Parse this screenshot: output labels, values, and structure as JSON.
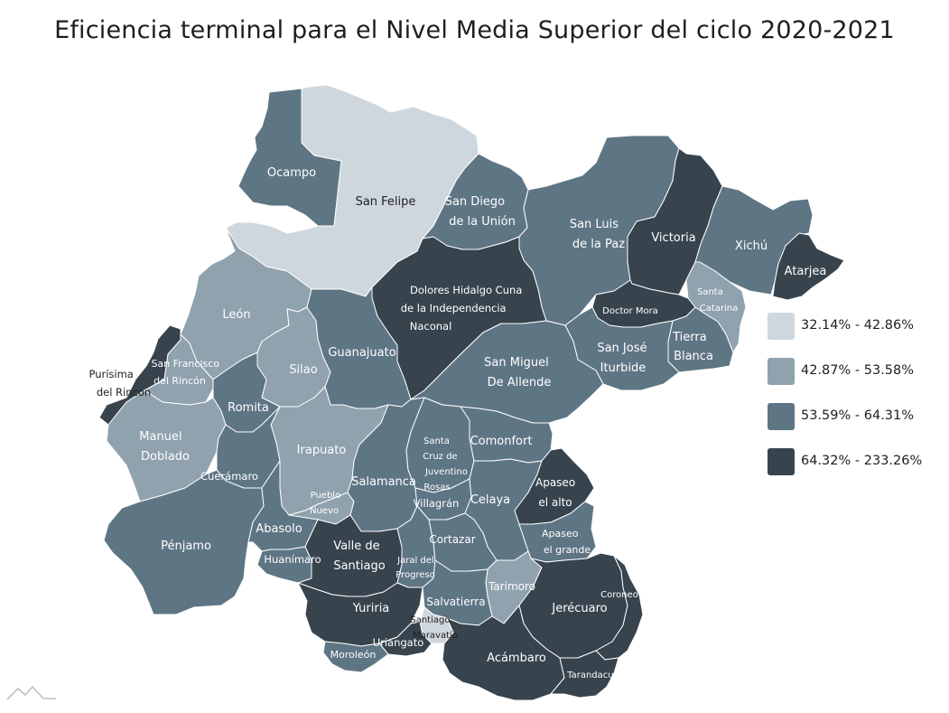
{
  "title": "Eficiencia terminal para el Nivel Media Superior del ciclo 2020-2021",
  "legend": [
    {
      "label": "32.14% - 42.86%",
      "color": "#cfd7de"
    },
    {
      "label": "42.87% - 53.58%",
      "color": "#8fa2ae"
    },
    {
      "label": "53.59% - 64.31%",
      "color": "#5e7584"
    },
    {
      "label": "64.32% - 233.26%",
      "color": "#37434d"
    }
  ],
  "icons": {
    "logo": "mountain-logo-icon"
  },
  "regions": [
    {
      "id": "ocampo",
      "name": "Ocampo",
      "class": 2
    },
    {
      "id": "san-felipe",
      "name": "San Felipe",
      "class": 0
    },
    {
      "id": "san-diego",
      "name": "San Diego de la Unión",
      "class": 2
    },
    {
      "id": "san-luis-paz",
      "name": "San Luis de la Paz",
      "class": 2
    },
    {
      "id": "victoria",
      "name": "Victoria",
      "class": 3
    },
    {
      "id": "xichu",
      "name": "Xichú",
      "class": 2
    },
    {
      "id": "atarjea",
      "name": "Atarjea",
      "class": 3
    },
    {
      "id": "santa-catarina",
      "name": "Santa Catarina",
      "class": 1
    },
    {
      "id": "doctor-mora",
      "name": "Doctor Mora",
      "class": 3
    },
    {
      "id": "tierra-blanca",
      "name": "Tierra Blanca",
      "class": 2
    },
    {
      "id": "san-jose-iturbide",
      "name": "San José Iturbide",
      "class": 2
    },
    {
      "id": "dolores",
      "name": "Dolores Hidalgo Cuna de la Independencia Naconal",
      "class": 3
    },
    {
      "id": "san-miguel",
      "name": "San Miguel De Allende",
      "class": 2
    },
    {
      "id": "leon",
      "name": "León",
      "class": 1
    },
    {
      "id": "purisima",
      "name": "Purísima del Rincon",
      "class": 3
    },
    {
      "id": "san-francisco",
      "name": "San Francisco del Rincón",
      "class": 1
    },
    {
      "id": "silao",
      "name": "Silao",
      "class": 1
    },
    {
      "id": "guanajuato",
      "name": "Guanajuato",
      "class": 2
    },
    {
      "id": "romita",
      "name": "Romita",
      "class": 2
    },
    {
      "id": "manuel-doblado",
      "name": "Manuel Doblado",
      "class": 1
    },
    {
      "id": "irapuato",
      "name": "Irapuato",
      "class": 1
    },
    {
      "id": "cueramaro",
      "name": "Cuerámaro",
      "class": 2
    },
    {
      "id": "penjamo",
      "name": "Pénjamo",
      "class": 2
    },
    {
      "id": "abasolo",
      "name": "Abasolo",
      "class": 2
    },
    {
      "id": "huanimaro",
      "name": "Huanímaro",
      "class": 2
    },
    {
      "id": "pueblo-nuevo",
      "name": "Pueblo Nuevo",
      "class": 1
    },
    {
      "id": "salamanca",
      "name": "Salamanca",
      "class": 2
    },
    {
      "id": "santa-cruz",
      "name": "Santa Cruz de Juventino Rosas",
      "class": 2
    },
    {
      "id": "comonfort",
      "name": "Comonfort",
      "class": 2
    },
    {
      "id": "villagran",
      "name": "Villagrán",
      "class": 2
    },
    {
      "id": "celaya",
      "name": "Celaya",
      "class": 2
    },
    {
      "id": "apaseo-alto",
      "name": "Apaseo el alto",
      "class": 3
    },
    {
      "id": "apaseo-grande",
      "name": "Apaseo el grande",
      "class": 2
    },
    {
      "id": "valle-santiago",
      "name": "Valle de Santiago",
      "class": 3
    },
    {
      "id": "jaral",
      "name": "Jaral del Progreso",
      "class": 2
    },
    {
      "id": "cortazar",
      "name": "Cortazar",
      "class": 2
    },
    {
      "id": "tarimoro",
      "name": "Tarimoro",
      "class": 1
    },
    {
      "id": "jerecuaro",
      "name": "Jerécuaro",
      "class": 3
    },
    {
      "id": "coroneo",
      "name": "Coroneo",
      "class": 3
    },
    {
      "id": "yuriria",
      "name": "Yuriria",
      "class": 3
    },
    {
      "id": "salvatierra",
      "name": "Salvatierra",
      "class": 2
    },
    {
      "id": "santiago-maravatio",
      "name": "Santiago Maravatío",
      "class": 0
    },
    {
      "id": "uriangato",
      "name": "Uriangato",
      "class": 3
    },
    {
      "id": "moroleon",
      "name": "Moroleón",
      "class": 2
    },
    {
      "id": "acambaro",
      "name": "Acámbaro",
      "class": 3
    },
    {
      "id": "tarandacuao",
      "name": "Tarandacuao",
      "class": 3
    }
  ]
}
